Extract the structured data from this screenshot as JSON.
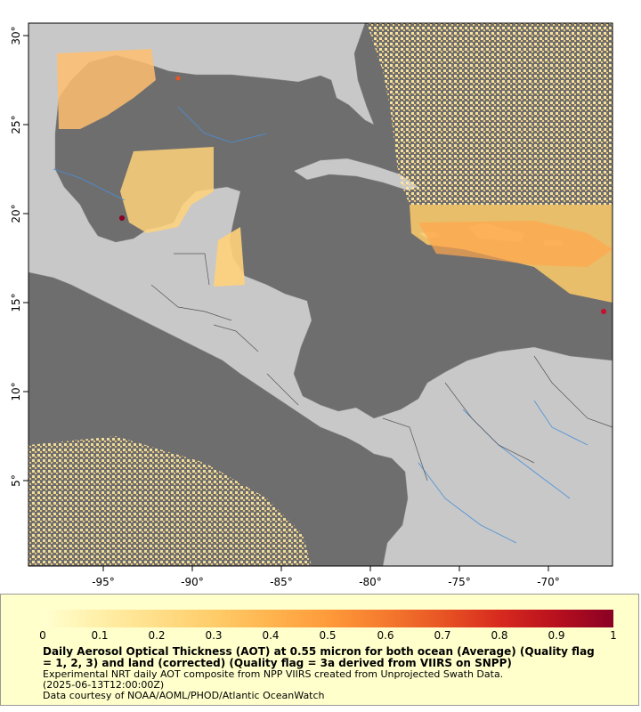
{
  "map": {
    "colors": {
      "ocean": "#6e6e6e",
      "land": "#c8c8c8",
      "rivers": "#4a90d9",
      "borders": "#555555",
      "aot_low": "#ffeeaa",
      "aot_mid": "#ffb347",
      "aot_high": "#8b0020"
    },
    "lon_ticks": [
      "-95°",
      "-90°",
      "-85°",
      "-80°",
      "-75°",
      "-70°"
    ],
    "lat_ticks": [
      "30°",
      "25°",
      "20°",
      "15°",
      "10°",
      "5°"
    ]
  },
  "legend": {
    "scale_labels": [
      "0",
      "0.1",
      "0.2",
      "0.3",
      "0.4",
      "0.5",
      "0.6",
      "0.7",
      "0.8",
      "0.9",
      "1"
    ],
    "scale_colors": [
      "#ffffd0",
      "#ffefa8",
      "#ffde88",
      "#ffcc6a",
      "#ffb44e",
      "#ff9a3a",
      "#f57a2e",
      "#e85524",
      "#d82a1e",
      "#b8101e",
      "#8a0024"
    ],
    "title": "Daily Aerosol Optical Thickness (AOT) at 0.55 micron for both ocean (Average) (Quality flag = 1, 2, 3) and land (corrected) (Quality flag = 3a derived from VIIRS on SNPP)",
    "note1": "Experimental NRT daily AOT composite from NPP VIIRS created from Unprojected Swath Data.",
    "note2": "(2025-06-13T12:00:00Z)",
    "note3": "Data courtesy of NOAA/AOML/PHOD/Atlantic OceanWatch"
  }
}
